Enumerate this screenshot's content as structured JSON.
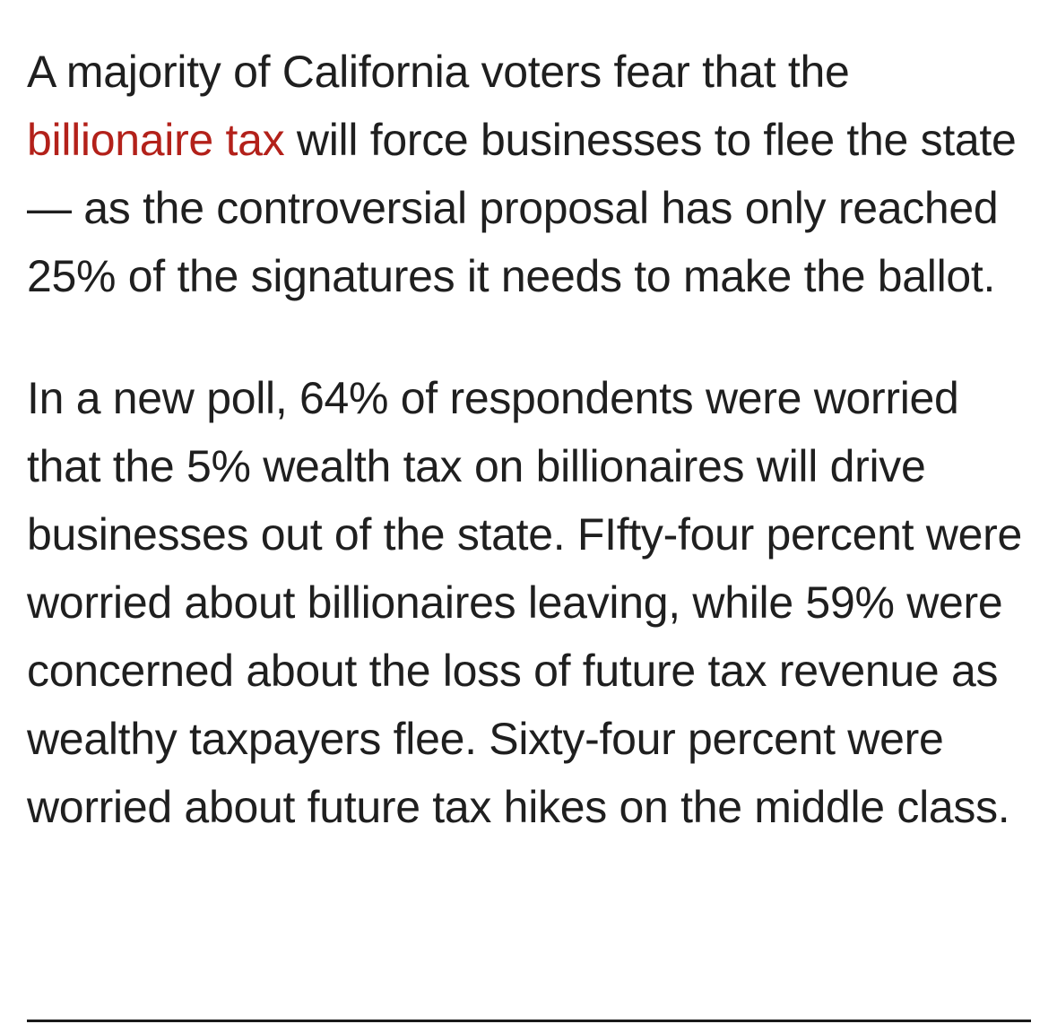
{
  "article": {
    "paragraph1": {
      "before_link": "A majority of California voters fear that the",
      "link_text": "billionaire tax",
      "after_link": "will force businesses to flee the state — as the controversial proposal has only reached 25% of the signatures it needs to make the ballot."
    },
    "paragraph2": "In a new poll, 64% of respondents were worried that the 5% wealth tax on billionaires will drive businesses out of the state. FIfty-four percent were worried about billionaires leaving, while 59% were concerned about the loss of future tax revenue as wealthy taxpayers flee. Sixty-four percent were worried about future tax hikes on the middle class."
  },
  "colors": {
    "link": "#b3211a",
    "text": "#1f1f1f",
    "background": "#ffffff"
  }
}
